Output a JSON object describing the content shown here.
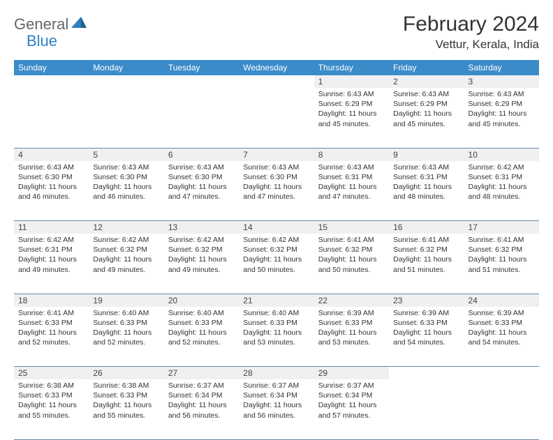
{
  "logo": {
    "part1": "General",
    "part2": "Blue"
  },
  "title": "February 2024",
  "location": "Vettur, Kerala, India",
  "colors": {
    "header_bg": "#3b8bc9",
    "header_text": "#ffffff",
    "daynum_bg": "#eef0f1",
    "border": "#6a88a4",
    "logo_gray": "#666666",
    "logo_blue": "#2f7fc2"
  },
  "dayHeaders": [
    "Sunday",
    "Monday",
    "Tuesday",
    "Wednesday",
    "Thursday",
    "Friday",
    "Saturday"
  ],
  "weeks": [
    [
      null,
      null,
      null,
      null,
      {
        "n": "1",
        "sr": "6:43 AM",
        "ss": "6:29 PM",
        "dl": "11 hours and 45 minutes."
      },
      {
        "n": "2",
        "sr": "6:43 AM",
        "ss": "6:29 PM",
        "dl": "11 hours and 45 minutes."
      },
      {
        "n": "3",
        "sr": "6:43 AM",
        "ss": "6:29 PM",
        "dl": "11 hours and 45 minutes."
      }
    ],
    [
      {
        "n": "4",
        "sr": "6:43 AM",
        "ss": "6:30 PM",
        "dl": "11 hours and 46 minutes."
      },
      {
        "n": "5",
        "sr": "6:43 AM",
        "ss": "6:30 PM",
        "dl": "11 hours and 46 minutes."
      },
      {
        "n": "6",
        "sr": "6:43 AM",
        "ss": "6:30 PM",
        "dl": "11 hours and 47 minutes."
      },
      {
        "n": "7",
        "sr": "6:43 AM",
        "ss": "6:30 PM",
        "dl": "11 hours and 47 minutes."
      },
      {
        "n": "8",
        "sr": "6:43 AM",
        "ss": "6:31 PM",
        "dl": "11 hours and 47 minutes."
      },
      {
        "n": "9",
        "sr": "6:43 AM",
        "ss": "6:31 PM",
        "dl": "11 hours and 48 minutes."
      },
      {
        "n": "10",
        "sr": "6:42 AM",
        "ss": "6:31 PM",
        "dl": "11 hours and 48 minutes."
      }
    ],
    [
      {
        "n": "11",
        "sr": "6:42 AM",
        "ss": "6:31 PM",
        "dl": "11 hours and 49 minutes."
      },
      {
        "n": "12",
        "sr": "6:42 AM",
        "ss": "6:32 PM",
        "dl": "11 hours and 49 minutes."
      },
      {
        "n": "13",
        "sr": "6:42 AM",
        "ss": "6:32 PM",
        "dl": "11 hours and 49 minutes."
      },
      {
        "n": "14",
        "sr": "6:42 AM",
        "ss": "6:32 PM",
        "dl": "11 hours and 50 minutes."
      },
      {
        "n": "15",
        "sr": "6:41 AM",
        "ss": "6:32 PM",
        "dl": "11 hours and 50 minutes."
      },
      {
        "n": "16",
        "sr": "6:41 AM",
        "ss": "6:32 PM",
        "dl": "11 hours and 51 minutes."
      },
      {
        "n": "17",
        "sr": "6:41 AM",
        "ss": "6:32 PM",
        "dl": "11 hours and 51 minutes."
      }
    ],
    [
      {
        "n": "18",
        "sr": "6:41 AM",
        "ss": "6:33 PM",
        "dl": "11 hours and 52 minutes."
      },
      {
        "n": "19",
        "sr": "6:40 AM",
        "ss": "6:33 PM",
        "dl": "11 hours and 52 minutes."
      },
      {
        "n": "20",
        "sr": "6:40 AM",
        "ss": "6:33 PM",
        "dl": "11 hours and 52 minutes."
      },
      {
        "n": "21",
        "sr": "6:40 AM",
        "ss": "6:33 PM",
        "dl": "11 hours and 53 minutes."
      },
      {
        "n": "22",
        "sr": "6:39 AM",
        "ss": "6:33 PM",
        "dl": "11 hours and 53 minutes."
      },
      {
        "n": "23",
        "sr": "6:39 AM",
        "ss": "6:33 PM",
        "dl": "11 hours and 54 minutes."
      },
      {
        "n": "24",
        "sr": "6:39 AM",
        "ss": "6:33 PM",
        "dl": "11 hours and 54 minutes."
      }
    ],
    [
      {
        "n": "25",
        "sr": "6:38 AM",
        "ss": "6:33 PM",
        "dl": "11 hours and 55 minutes."
      },
      {
        "n": "26",
        "sr": "6:38 AM",
        "ss": "6:33 PM",
        "dl": "11 hours and 55 minutes."
      },
      {
        "n": "27",
        "sr": "6:37 AM",
        "ss": "6:34 PM",
        "dl": "11 hours and 56 minutes."
      },
      {
        "n": "28",
        "sr": "6:37 AM",
        "ss": "6:34 PM",
        "dl": "11 hours and 56 minutes."
      },
      {
        "n": "29",
        "sr": "6:37 AM",
        "ss": "6:34 PM",
        "dl": "11 hours and 57 minutes."
      },
      null,
      null
    ]
  ],
  "labels": {
    "sunrise": "Sunrise:",
    "sunset": "Sunset:",
    "daylight": "Daylight:"
  }
}
